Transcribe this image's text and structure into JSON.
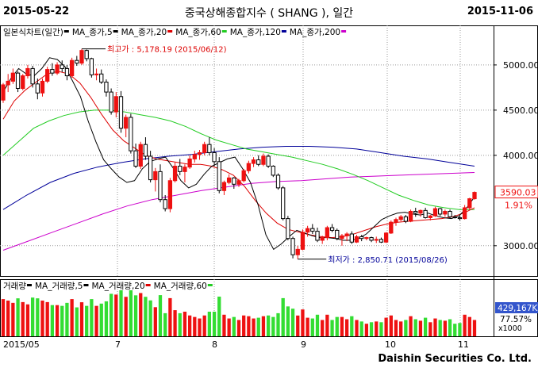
{
  "header": {
    "start_date": "2015-05-22",
    "title": "중국상해종합지수 ( SHANG ), 일간",
    "end_date": "2015-11-06"
  },
  "footer": {
    "brand": "Daishin Securities Co. Ltd."
  },
  "colors": {
    "up": "#ee1111",
    "down": "#000000",
    "ma5": "#000000",
    "ma20": "#dd0000",
    "ma60": "#22cc22",
    "ma120": "#000099",
    "ma200": "#cc00cc",
    "vol_up": "#ee1111",
    "vol_down": "#33dd33"
  },
  "chart_data": [
    {
      "type": "candlestick",
      "legend": [
        {
          "label": "일본식차트(일간)",
          "color": "#000000"
        },
        {
          "label": "MA_종가,5",
          "color": "#000000"
        },
        {
          "label": "MA_종가,20",
          "color": "#dd0000"
        },
        {
          "label": "MA_종가,60",
          "color": "#22cc22"
        },
        {
          "label": "MA_종가,120",
          "color": "#000099"
        },
        {
          "label": "MA_종가,200",
          "color": "#cc00cc"
        }
      ],
      "y_ticks": [
        "5000.00",
        "4500.00",
        "4000.00",
        "3000.00"
      ],
      "ylim": [
        2700,
        5350
      ],
      "x_ticks": [
        "2015/05",
        "7",
        "8",
        "9",
        "10",
        "11"
      ],
      "annotations": {
        "high": "최고가 : 5,178.19 (2015/06/12)",
        "low": "최저가 : 2,850.71 (2015/08/26)"
      },
      "last_price": "3590.03",
      "last_change": "1.91%",
      "candles": [
        [
          4611,
          4800,
          4580,
          4780
        ],
        [
          4780,
          4900,
          4700,
          4820
        ],
        [
          4820,
          4960,
          4790,
          4910
        ],
        [
          4910,
          4930,
          4700,
          4740
        ],
        [
          4740,
          4900,
          4720,
          4880
        ],
        [
          4880,
          5000,
          4850,
          4960
        ],
        [
          4960,
          4990,
          4750,
          4790
        ],
        [
          4790,
          4850,
          4620,
          4690
        ],
        [
          4690,
          4850,
          4650,
          4820
        ],
        [
          4820,
          4980,
          4800,
          4950
        ],
        [
          4950,
          5020,
          4880,
          4910
        ],
        [
          4910,
          5030,
          4890,
          5000
        ],
        [
          5000,
          5050,
          4920,
          4960
        ],
        [
          4960,
          5000,
          4830,
          4880
        ],
        [
          4880,
          5080,
          4860,
          5050
        ],
        [
          5050,
          5100,
          4990,
          5020
        ],
        [
          5020,
          5178,
          5000,
          5160
        ],
        [
          5160,
          5170,
          5040,
          5070
        ],
        [
          5070,
          5080,
          4860,
          4890
        ],
        [
          4890,
          4960,
          4830,
          4900
        ],
        [
          4900,
          4950,
          4790,
          4810
        ],
        [
          4810,
          4840,
          4650,
          4700
        ],
        [
          4700,
          4740,
          4450,
          4480
        ],
        [
          4480,
          4700,
          4420,
          4650
        ],
        [
          4650,
          4710,
          4250,
          4300
        ],
        [
          4300,
          4450,
          4200,
          4420
        ],
        [
          4420,
          4460,
          4020,
          4050
        ],
        [
          4050,
          4130,
          3860,
          3880
        ],
        [
          3880,
          4150,
          3850,
          4120
        ],
        [
          4120,
          4200,
          3950,
          3990
        ],
        [
          3990,
          4050,
          3700,
          3730
        ],
        [
          3730,
          3860,
          3600,
          3820
        ],
        [
          3820,
          3900,
          3480,
          3510
        ],
        [
          3510,
          3560,
          3380,
          3410
        ],
        [
          3410,
          3750,
          3370,
          3720
        ],
        [
          3720,
          3920,
          3700,
          3880
        ],
        [
          3880,
          3960,
          3780,
          3820
        ],
        [
          3820,
          3900,
          3700,
          3870
        ],
        [
          3870,
          4000,
          3850,
          3960
        ],
        [
          3960,
          4050,
          3920,
          4010
        ],
        [
          4010,
          4060,
          3950,
          4030
        ],
        [
          4030,
          4150,
          4000,
          4120
        ],
        [
          4120,
          4200,
          4000,
          4030
        ],
        [
          4030,
          4080,
          3880,
          3930
        ],
        [
          3930,
          3980,
          3580,
          3610
        ],
        [
          3610,
          3720,
          3560,
          3700
        ],
        [
          3700,
          3790,
          3680,
          3750
        ],
        [
          3750,
          3760,
          3630,
          3680
        ],
        [
          3680,
          3740,
          3650,
          3720
        ],
        [
          3720,
          3850,
          3700,
          3830
        ],
        [
          3830,
          3940,
          3800,
          3910
        ],
        [
          3910,
          3980,
          3870,
          3950
        ],
        [
          3950,
          4000,
          3880,
          3900
        ],
        [
          3900,
          4020,
          3880,
          3990
        ],
        [
          3990,
          4010,
          3860,
          3880
        ],
        [
          3880,
          3890,
          3760,
          3780
        ],
        [
          3780,
          3800,
          3620,
          3640
        ],
        [
          3640,
          3660,
          3280,
          3300
        ],
        [
          3300,
          3330,
          3060,
          3080
        ],
        [
          3080,
          3100,
          2860,
          2900
        ],
        [
          2900,
          3000,
          2851,
          2960
        ],
        [
          2960,
          3180,
          2950,
          3150
        ],
        [
          3150,
          3220,
          3100,
          3190
        ],
        [
          3190,
          3240,
          3130,
          3160
        ],
        [
          3160,
          3200,
          3040,
          3060
        ],
        [
          3060,
          3110,
          3020,
          3090
        ],
        [
          3090,
          3220,
          3060,
          3200
        ],
        [
          3200,
          3240,
          3150,
          3170
        ],
        [
          3170,
          3190,
          3060,
          3080
        ],
        [
          3080,
          3130,
          3000,
          3110
        ],
        [
          3110,
          3150,
          3050,
          3130
        ],
        [
          3130,
          3160,
          3020,
          3040
        ],
        [
          3040,
          3120,
          3030,
          3100
        ],
        [
          3100,
          3120,
          3050,
          3080
        ],
        [
          3080,
          3100,
          3060,
          3090
        ],
        [
          3090,
          3100,
          3040,
          3060
        ],
        [
          3060,
          3100,
          3030,
          3070
        ],
        [
          3070,
          3090,
          3030,
          3040
        ],
        [
          3040,
          3150,
          3030,
          3140
        ],
        [
          3140,
          3280,
          3130,
          3260
        ],
        [
          3260,
          3310,
          3220,
          3290
        ],
        [
          3290,
          3340,
          3270,
          3320
        ],
        [
          3320,
          3340,
          3250,
          3270
        ],
        [
          3270,
          3400,
          3260,
          3380
        ],
        [
          3380,
          3420,
          3320,
          3360
        ],
        [
          3360,
          3400,
          3320,
          3390
        ],
        [
          3390,
          3420,
          3300,
          3310
        ],
        [
          3310,
          3340,
          3280,
          3330
        ],
        [
          3330,
          3430,
          3320,
          3410
        ],
        [
          3410,
          3420,
          3330,
          3350
        ],
        [
          3350,
          3400,
          3320,
          3380
        ],
        [
          3380,
          3400,
          3300,
          3320
        ],
        [
          3320,
          3340,
          3300,
          3310
        ],
        [
          3310,
          3330,
          3280,
          3300
        ],
        [
          3300,
          3450,
          3290,
          3420
        ],
        [
          3420,
          3530,
          3400,
          3520
        ],
        [
          3520,
          3600,
          3510,
          3590
        ]
      ],
      "ma5_approx": [
        4700,
        4850,
        4960,
        4900,
        4880,
        4960,
        5080,
        5060,
        4980,
        4820,
        4650,
        4380,
        4150,
        3950,
        3850,
        3760,
        3700,
        3720,
        3850,
        3930,
        3960,
        3980,
        3860,
        3720,
        3640,
        3680,
        3790,
        3880,
        3920,
        3960,
        3980,
        3850,
        3700,
        3450,
        3120,
        2960,
        3020,
        3100,
        3170,
        3140,
        3110,
        3090,
        3090,
        3080,
        3060,
        3060,
        3080,
        3130,
        3210,
        3290,
        3330,
        3360,
        3370,
        3350,
        3340,
        3360,
        3330,
        3310,
        3300,
        3330,
        3420,
        3540
      ],
      "ma20_approx": [
        4400,
        4600,
        4720,
        4810,
        4900,
        4930,
        4900,
        4800,
        4640,
        4450,
        4280,
        4160,
        4080,
        4000,
        3960,
        3940,
        3920,
        3900,
        3900,
        3880,
        3840,
        3780,
        3660,
        3500,
        3360,
        3250,
        3180,
        3150,
        3120,
        3100,
        3090,
        3100,
        3130,
        3170,
        3210,
        3240,
        3260,
        3270,
        3280,
        3290,
        3300,
        3320,
        3360,
        3420
      ],
      "ma60_approx": [
        4000,
        4150,
        4300,
        4380,
        4440,
        4480,
        4500,
        4500,
        4480,
        4450,
        4420,
        4380,
        4320,
        4240,
        4170,
        4120,
        4070,
        4040,
        4010,
        3980,
        3940,
        3900,
        3850,
        3790,
        3720,
        3640,
        3560,
        3500,
        3450,
        3420,
        3400,
        3400
      ],
      "ma120_approx": [
        3400,
        3560,
        3700,
        3800,
        3870,
        3920,
        3960,
        3990,
        4010,
        4040,
        4070,
        4090,
        4100,
        4100,
        4090,
        4070,
        4030,
        3990,
        3960,
        3920,
        3880
      ],
      "ma200_approx": [
        2950,
        3050,
        3150,
        3250,
        3350,
        3440,
        3510,
        3560,
        3610,
        3650,
        3690,
        3710,
        3720,
        3740,
        3760,
        3770,
        3780,
        3790,
        3800,
        3810
      ]
    },
    {
      "type": "bar",
      "legend": [
        {
          "label": "거래량",
          "color": "#000000"
        },
        {
          "label": "MA_거래량,5",
          "color": "#000000"
        },
        {
          "label": "MA_거래량,20",
          "color": "#dd0000"
        },
        {
          "label": "MA_거래량,60",
          "color": "#22cc22"
        }
      ],
      "last_volume": "429,167K",
      "last_ratio": "77.57%",
      "unit": "x1000"
    }
  ]
}
